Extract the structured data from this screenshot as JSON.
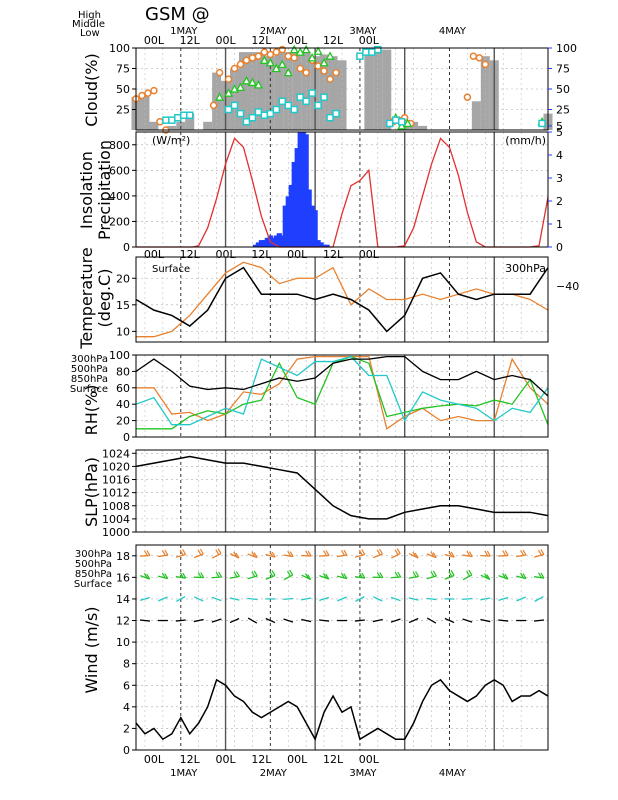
{
  "page": {
    "title": "GSM  @",
    "colors": {
      "high": "#e8812e",
      "middle": "#22c322",
      "low": "#22c8c8",
      "surface": "#000000",
      "insolation": "#e03030",
      "precip": "#1f3fff",
      "bars": "#a6a6a6",
      "rightaxis": "#1f3fff"
    }
  },
  "chart_data": [
    {
      "type": "bar",
      "panel": "cloud",
      "ylabel": "Cloud(%)",
      "ylim": [
        0,
        100
      ],
      "yticks": [
        "25",
        "50",
        "75",
        "100"
      ],
      "right_ticks": [
        "5",
        "25",
        "50",
        "75",
        "100"
      ],
      "legend": [
        "High",
        "Middle",
        "Low"
      ],
      "series": [
        {
          "name": "Total",
          "x": [
            0,
            3,
            6,
            9,
            12,
            15,
            18,
            21,
            24,
            27,
            30,
            33,
            36,
            39,
            42,
            45,
            48,
            51,
            54,
            57,
            60,
            63,
            66,
            69,
            72,
            75,
            78,
            81,
            84,
            87,
            90,
            93,
            96,
            99,
            102,
            105,
            108,
            111,
            114,
            117,
            120,
            123,
            126,
            129,
            132,
            135,
            138
          ],
          "values": [
            40,
            45,
            10,
            0,
            5,
            10,
            20,
            0,
            10,
            70,
            60,
            75,
            95,
            95,
            95,
            90,
            95,
            95,
            95,
            95,
            90,
            92,
            90,
            85,
            0,
            0,
            98,
            98,
            98,
            0,
            5,
            10,
            5,
            0,
            0,
            0,
            0,
            0,
            35,
            90,
            85,
            0,
            0,
            0,
            0,
            0,
            20
          ]
        },
        {
          "name": "High",
          "x": [
            0,
            2,
            4,
            6,
            8,
            10,
            26,
            28,
            31,
            33,
            35,
            37,
            39,
            41,
            43,
            45,
            47,
            49,
            51,
            53,
            55,
            57,
            59,
            61,
            63,
            65,
            67,
            86,
            88,
            90,
            92,
            111,
            113,
            115,
            117
          ],
          "values": [
            38,
            42,
            45,
            48,
            10,
            0,
            30,
            70,
            62,
            75,
            80,
            85,
            88,
            90,
            95,
            92,
            95,
            98,
            90,
            88,
            75,
            70,
            85,
            78,
            72,
            62,
            70,
            10,
            12,
            15,
            8,
            40,
            90,
            88,
            80
          ]
        },
        {
          "name": "Middle",
          "x": [
            28,
            31,
            33,
            35,
            37,
            39,
            41,
            43,
            45,
            47,
            49,
            51,
            53,
            55,
            57,
            59,
            61,
            63,
            65,
            87,
            89,
            91,
            136
          ],
          "values": [
            40,
            45,
            50,
            52,
            60,
            58,
            55,
            85,
            82,
            75,
            80,
            70,
            98,
            95,
            98,
            88,
            96,
            82,
            90,
            15,
            5,
            8,
            10
          ]
        },
        {
          "name": "Low",
          "x": [
            10,
            12,
            14,
            16,
            18,
            31,
            33,
            35,
            37,
            39,
            41,
            43,
            45,
            47,
            49,
            51,
            53,
            55,
            57,
            59,
            61,
            63,
            65,
            67,
            75,
            77,
            79,
            81,
            85,
            87,
            89,
            136
          ],
          "values": [
            12,
            12,
            15,
            18,
            18,
            25,
            30,
            20,
            10,
            15,
            22,
            18,
            20,
            25,
            35,
            30,
            25,
            40,
            35,
            45,
            30,
            40,
            15,
            20,
            90,
            95,
            95,
            98,
            8,
            12,
            10,
            8
          ]
        }
      ]
    },
    {
      "type": "bar",
      "panel": "insolation-precip",
      "ylabel": [
        "Insolation",
        "Precipitation"
      ],
      "left_unit": "(W/m²)",
      "right_unit": "(mm/h)",
      "ylim_left": [
        0,
        900
      ],
      "ylim_right": [
        0,
        5
      ],
      "yticks_left": [
        "0",
        "200",
        "400",
        "600",
        "800"
      ],
      "yticks_right": [
        "0",
        "1",
        "2",
        "3",
        "4",
        "5"
      ],
      "insolation_x": [
        0,
        6,
        9,
        12,
        15,
        18,
        19,
        21,
        24,
        27,
        30,
        33,
        36,
        39,
        42,
        45,
        48,
        51,
        54,
        57,
        60,
        63,
        66,
        69,
        72,
        75,
        78,
        81,
        84,
        87,
        90,
        93,
        96,
        99,
        102,
        105,
        108,
        111,
        114,
        117,
        120,
        123,
        126,
        129,
        132,
        135,
        138
      ],
      "insolation": [
        0,
        0,
        0,
        0,
        0,
        0,
        0,
        10,
        150,
        380,
        650,
        850,
        780,
        520,
        240,
        40,
        0,
        0,
        0,
        0,
        0,
        0,
        0,
        260,
        480,
        520,
        600,
        0,
        0,
        0,
        10,
        150,
        400,
        650,
        850,
        780,
        560,
        270,
        40,
        0,
        0,
        0,
        0,
        0,
        0,
        10,
        390
      ],
      "precip_x": [
        40,
        41,
        42,
        43,
        44,
        45,
        46,
        47,
        48,
        49,
        50,
        51,
        52,
        53,
        54,
        55,
        56,
        57,
        58,
        59,
        60,
        61,
        62,
        63,
        64
      ],
      "precip": [
        0.1,
        0.2,
        0.3,
        0.3,
        0.4,
        0.5,
        0.4,
        0.5,
        0.6,
        0.5,
        1.8,
        2.2,
        2.7,
        3.7,
        4.3,
        5.0,
        5.0,
        4.9,
        2.5,
        1.8,
        1.6,
        0.3,
        0.2,
        0.1,
        0.1
      ]
    },
    {
      "type": "line",
      "panel": "temperature",
      "ylabel": [
        "Temperature",
        "(deg.C)"
      ],
      "ylim": [
        8,
        24
      ],
      "yticks": [
        "10",
        "15",
        "20"
      ],
      "right_series_label": "300hPa",
      "right_tick": "−40",
      "series": [
        {
          "name": "Surface",
          "x": [
            0,
            6,
            12,
            18,
            24,
            30,
            36,
            42,
            48,
            54,
            60,
            66,
            72,
            78,
            84,
            90,
            96,
            102,
            108,
            114,
            120,
            126,
            132,
            138
          ],
          "values": [
            16,
            14,
            13,
            11,
            14,
            20,
            22,
            17,
            17,
            17,
            16,
            17,
            16,
            14,
            10,
            13,
            20,
            21,
            17,
            16,
            17,
            17,
            17,
            22
          ]
        },
        {
          "name": "300hPa",
          "x": [
            0,
            6,
            12,
            18,
            24,
            30,
            36,
            42,
            48,
            54,
            60,
            66,
            72,
            78,
            84,
            90,
            96,
            102,
            108,
            114,
            120,
            126,
            132,
            138
          ],
          "values": [
            9,
            9,
            10,
            13,
            17,
            21,
            23,
            22,
            19,
            20,
            20,
            22,
            15,
            18,
            16,
            16,
            17,
            16,
            17,
            18,
            17,
            17,
            16,
            14
          ]
        }
      ]
    },
    {
      "type": "line",
      "panel": "rh",
      "ylabel": "RH(%)",
      "ylim": [
        0,
        100
      ],
      "yticks": [
        "0",
        "20",
        "40",
        "60",
        "80",
        "100"
      ],
      "legend": [
        "300hPa",
        "500hPa",
        "850hPa",
        "Surface"
      ],
      "series": [
        {
          "name": "300hPa",
          "x": [
            0,
            6,
            12,
            18,
            24,
            30,
            36,
            42,
            48,
            54,
            60,
            66,
            72,
            78,
            84,
            90,
            96,
            102,
            108,
            114,
            120,
            126,
            132,
            138
          ],
          "values": [
            60,
            60,
            28,
            30,
            20,
            28,
            55,
            52,
            65,
            95,
            98,
            98,
            98,
            98,
            10,
            25,
            35,
            20,
            25,
            20,
            20,
            95,
            60,
            40
          ]
        },
        {
          "name": "500hPa",
          "x": [
            0,
            6,
            12,
            18,
            24,
            30,
            36,
            42,
            48,
            54,
            60,
            66,
            72,
            78,
            84,
            90,
            96,
            102,
            108,
            114,
            120,
            126,
            132,
            138
          ],
          "values": [
            10,
            10,
            10,
            25,
            32,
            28,
            40,
            45,
            90,
            48,
            40,
            90,
            98,
            90,
            25,
            30,
            35,
            38,
            40,
            38,
            45,
            40,
            70,
            15
          ]
        },
        {
          "name": "850hPa",
          "x": [
            0,
            6,
            12,
            18,
            24,
            30,
            36,
            42,
            48,
            54,
            60,
            66,
            72,
            78,
            84,
            90,
            96,
            102,
            108,
            114,
            120,
            126,
            132,
            138
          ],
          "values": [
            40,
            48,
            15,
            15,
            25,
            35,
            28,
            95,
            85,
            75,
            92,
            92,
            98,
            75,
            75,
            20,
            55,
            45,
            40,
            35,
            20,
            35,
            30,
            60
          ]
        },
        {
          "name": "Surface",
          "x": [
            0,
            6,
            12,
            18,
            24,
            30,
            36,
            42,
            48,
            54,
            60,
            66,
            72,
            78,
            84,
            90,
            96,
            102,
            108,
            114,
            120,
            126,
            132,
            138
          ],
          "values": [
            80,
            95,
            80,
            62,
            58,
            60,
            58,
            65,
            72,
            68,
            72,
            90,
            95,
            95,
            98,
            98,
            80,
            70,
            70,
            80,
            70,
            75,
            70,
            50
          ]
        }
      ]
    },
    {
      "type": "line",
      "panel": "slp",
      "ylabel": "SLP(hPa)",
      "ylim": [
        1000,
        1025
      ],
      "yticks": [
        "1000",
        "1004",
        "1008",
        "1012",
        "1016",
        "1020",
        "1024"
      ],
      "series": [
        {
          "name": "Surface",
          "x": [
            0,
            6,
            12,
            18,
            24,
            30,
            36,
            42,
            48,
            54,
            60,
            66,
            72,
            78,
            84,
            90,
            96,
            102,
            108,
            114,
            120,
            126,
            132,
            138
          ],
          "values": [
            1020,
            1021,
            1022,
            1023,
            1022,
            1021,
            1021,
            1020,
            1019,
            1018,
            1013,
            1008,
            1005,
            1004,
            1004,
            1006,
            1007,
            1008,
            1008,
            1007,
            1006,
            1006,
            1006,
            1005
          ]
        }
      ]
    },
    {
      "type": "line",
      "panel": "wind",
      "ylabel": "Wind  (m/s)",
      "ylim": [
        0,
        19
      ],
      "yticks": [
        "0",
        "2",
        "4",
        "6",
        "8",
        "10",
        "12",
        "14",
        "16",
        "18"
      ],
      "legend": [
        "300hPa",
        "500hPa",
        "850hPa",
        "Surface"
      ],
      "series": [
        {
          "name": "Surface",
          "x": [
            0,
            3,
            6,
            9,
            12,
            15,
            18,
            21,
            24,
            27,
            30,
            33,
            36,
            39,
            42,
            45,
            48,
            51,
            54,
            57,
            60,
            63,
            66,
            69,
            72,
            75,
            78,
            81,
            84,
            87,
            90,
            93,
            96,
            99,
            102,
            105,
            108,
            111,
            114,
            117,
            120,
            123,
            126,
            129,
            132,
            135,
            138
          ],
          "values": [
            2.5,
            1.5,
            2.0,
            1.0,
            1.5,
            3.0,
            1.5,
            2.5,
            4.0,
            6.5,
            6.0,
            5.0,
            4.5,
            3.5,
            3.0,
            3.5,
            4.0,
            4.5,
            4.0,
            2.5,
            1.0,
            3.5,
            5.0,
            3.5,
            4.0,
            1.0,
            1.5,
            2.0,
            1.5,
            1.0,
            1.0,
            2.5,
            4.5,
            6.0,
            6.5,
            5.5,
            5.0,
            4.5,
            5.0,
            6.0,
            6.5,
            6.0,
            4.5,
            5.0,
            5.0,
            5.5,
            5.0
          ]
        }
      ]
    }
  ],
  "time_axis": {
    "x_min": 0,
    "x_max": 138,
    "top_labels": [
      "00L",
      "12L",
      "00L",
      "12L",
      "00L",
      "12L",
      "00L"
    ],
    "top_label_x": [
      6,
      18,
      30,
      42,
      54,
      66,
      78
    ],
    "day_labels": [
      "1MAY",
      "2MAY",
      "3MAY",
      "4MAY"
    ],
    "day_label_x": [
      16,
      46,
      76,
      106
    ],
    "solid_lines_x": [
      0,
      30,
      60,
      90,
      120
    ],
    "dashed_lines_x": [
      15,
      45,
      75,
      105
    ]
  }
}
